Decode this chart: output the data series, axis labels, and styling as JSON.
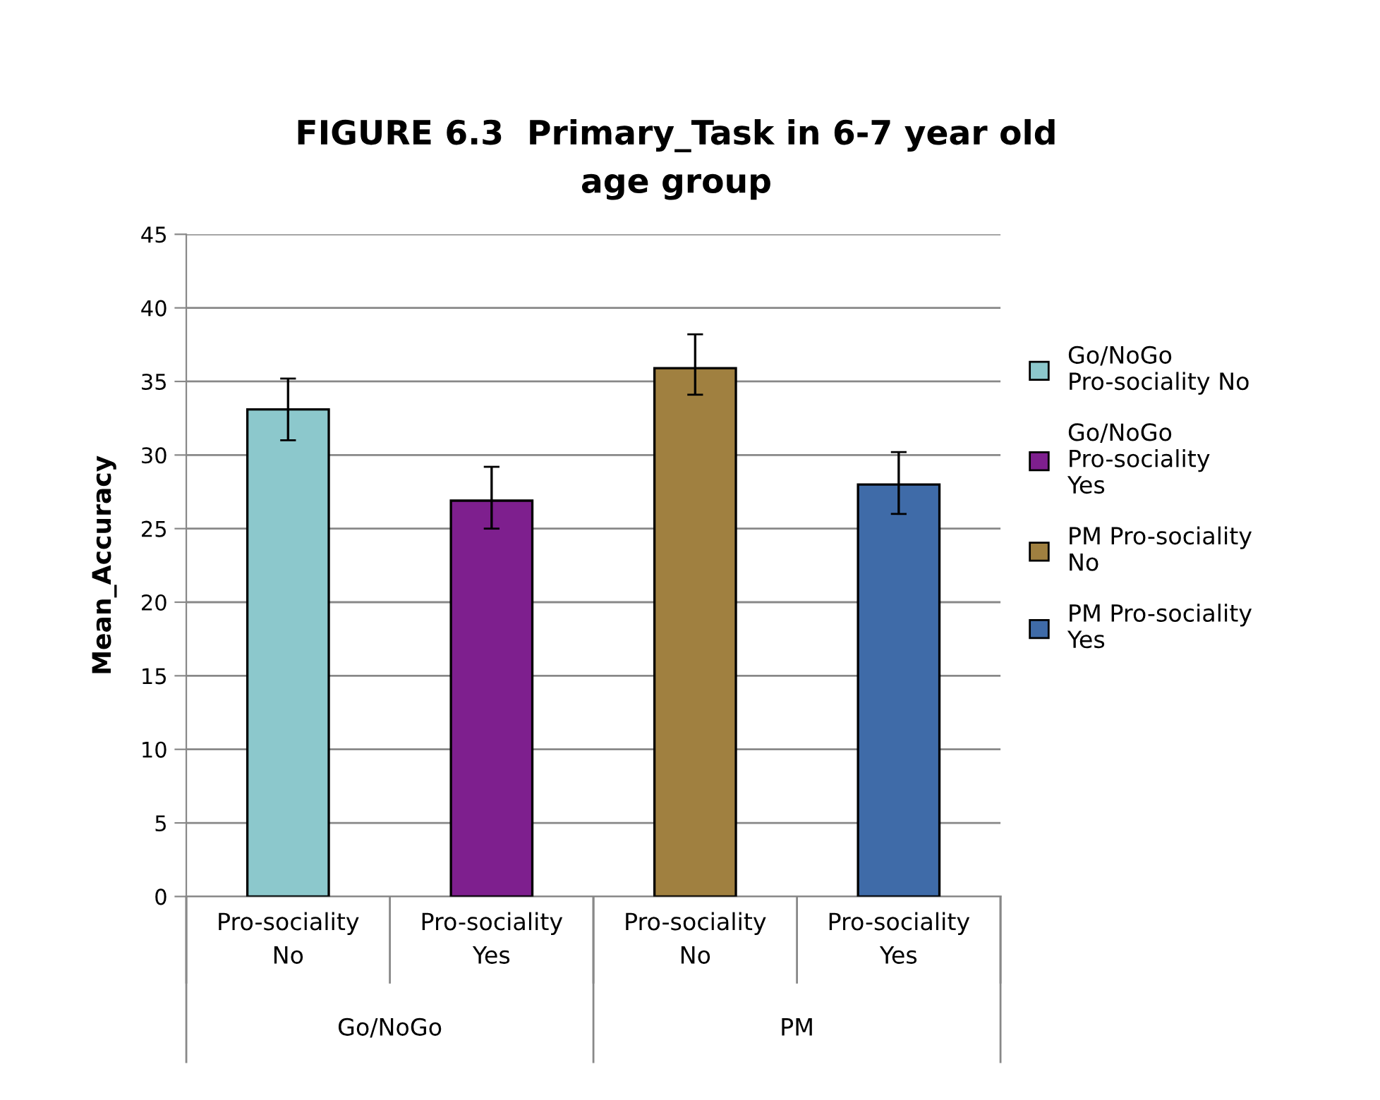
{
  "chart_data": {
    "type": "bar",
    "title": "FIGURE 6.3  Primary_Task in 6-7 year old age group",
    "ylabel": "Mean_Accuracy",
    "categories": [
      "Pro-sociality No",
      "Pro-sociality Yes",
      "Pro-sociality No",
      "Pro-sociality Yes"
    ],
    "annotations": [
      "Go/NoGo",
      "PM"
    ],
    "series": [
      {
        "name": "Go/NoGo Pro-sociality No",
        "color": "#8cc8cc",
        "values": [
          33.1,
          null,
          null,
          null
        ],
        "errors": [
          [
            31.0,
            35.2
          ],
          null,
          null,
          null
        ]
      },
      {
        "name": "Go/NoGo Pro-sociality Yes",
        "color": "#7e1f8e",
        "values": [
          null,
          26.9,
          null,
          null
        ],
        "errors": [
          null,
          [
            25.0,
            29.2
          ],
          null,
          null
        ]
      },
      {
        "name": "PM Pro-sociality No",
        "color": "#a08040",
        "values": [
          null,
          null,
          35.9,
          null
        ],
        "errors": [
          null,
          null,
          [
            34.1,
            38.2
          ],
          null
        ]
      },
      {
        "name": "PM Pro-sociality Yes",
        "color": "#3f6ba8",
        "values": [
          null,
          null,
          null,
          28.0
        ],
        "errors": [
          null,
          null,
          null,
          [
            26.0,
            30.2
          ]
        ]
      }
    ],
    "ylim": [
      0,
      45
    ],
    "yticks": [
      0,
      5,
      10,
      15,
      20,
      25,
      30,
      35,
      40,
      45
    ],
    "grid": "y",
    "legend": "right"
  }
}
